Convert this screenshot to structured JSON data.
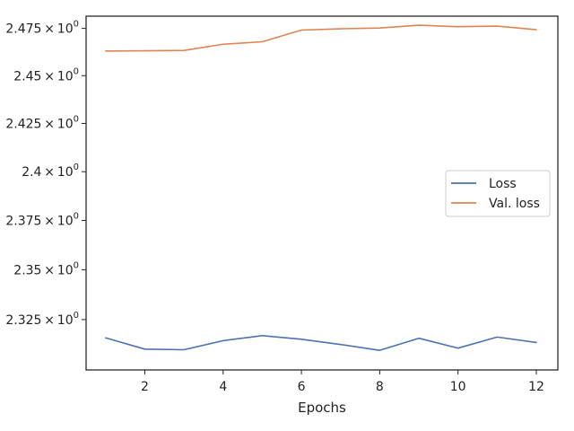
{
  "chart_data": {
    "type": "line",
    "title": "",
    "xlabel": "Epochs",
    "ylabel": "",
    "xlim": [
      0.5,
      12.55
    ],
    "ylim": [
      2.3,
      2.4815
    ],
    "yscale": "log",
    "x_ticks": [
      2,
      4,
      6,
      8,
      10,
      12
    ],
    "x_tick_labels": [
      "2",
      "4",
      "6",
      "8",
      "10",
      "12"
    ],
    "y_ticks": [
      2.325,
      2.35,
      2.375,
      2.4,
      2.425,
      2.45,
      2.475
    ],
    "y_tick_labels": [
      {
        "mantissa": "2.325",
        "base": "10",
        "exp": "0"
      },
      {
        "mantissa": "2.35",
        "base": "10",
        "exp": "0"
      },
      {
        "mantissa": "2.375",
        "base": "10",
        "exp": "0"
      },
      {
        "mantissa": "2.4",
        "base": "10",
        "exp": "0"
      },
      {
        "mantissa": "2.425",
        "base": "10",
        "exp": "0"
      },
      {
        "mantissa": "2.45",
        "base": "10",
        "exp": "0"
      },
      {
        "mantissa": "2.475",
        "base": "10",
        "exp": "0"
      }
    ],
    "grid": false,
    "legend_position": "center-right",
    "x": [
      1,
      2,
      3,
      4,
      5,
      6,
      7,
      8,
      9,
      10,
      11,
      12
    ],
    "series": [
      {
        "name": "Loss",
        "color": "#4c72b0",
        "values": [
          2.3159,
          2.3103,
          2.31,
          2.3145,
          2.317,
          2.3152,
          2.3126,
          2.3097,
          2.3157,
          2.3108,
          2.3163,
          2.3136
        ]
      },
      {
        "name": "Val. loss",
        "color": "#dd8452",
        "values": [
          2.463,
          2.4631,
          2.4633,
          2.4666,
          2.4679,
          2.4741,
          2.4748,
          2.4752,
          2.4767,
          2.4759,
          2.4762,
          2.4743
        ]
      }
    ]
  }
}
